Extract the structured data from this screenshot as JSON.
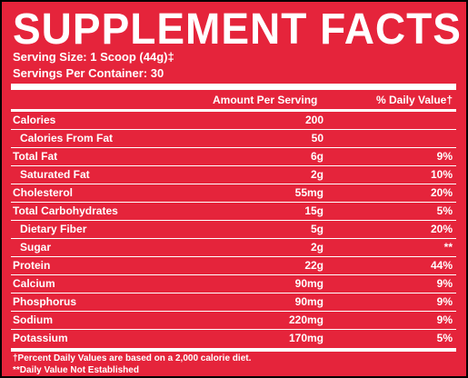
{
  "title": "SUPPLEMENT FACTS",
  "serving_size": "Serving Size: 1 Scoop (44g)‡",
  "servings_per_container": "Servings Per Container: 30",
  "columns": {
    "amount": "Amount Per Serving",
    "daily_value": "% Daily Value†"
  },
  "rows": [
    {
      "name": "Calories",
      "amount": "200",
      "dv": "",
      "indent": false
    },
    {
      "name": "Calories From Fat",
      "amount": "50",
      "dv": "",
      "indent": true
    },
    {
      "name": "Total Fat",
      "amount": "6g",
      "dv": "9%",
      "indent": false
    },
    {
      "name": "Saturated Fat",
      "amount": "2g",
      "dv": "10%",
      "indent": true
    },
    {
      "name": "Cholesterol",
      "amount": "55mg",
      "dv": "20%",
      "indent": false
    },
    {
      "name": "Total Carbohydrates",
      "amount": "15g",
      "dv": "5%",
      "indent": false
    },
    {
      "name": "Dietary Fiber",
      "amount": "5g",
      "dv": "20%",
      "indent": true
    },
    {
      "name": "Sugar",
      "amount": "2g",
      "dv": "**",
      "indent": true
    },
    {
      "name": "Protein",
      "amount": "22g",
      "dv": "44%",
      "indent": false
    },
    {
      "name": "Calcium",
      "amount": "90mg",
      "dv": "9%",
      "indent": false
    },
    {
      "name": "Phosphorus",
      "amount": "90mg",
      "dv": "9%",
      "indent": false
    },
    {
      "name": "Sodium",
      "amount": "220mg",
      "dv": "9%",
      "indent": false
    },
    {
      "name": "Potassium",
      "amount": "170mg",
      "dv": "5%",
      "indent": false
    }
  ],
  "footnotes": [
    "†Percent Daily Values are based on a 2,000 calorie diet.",
    "**Daily Value Not Established"
  ],
  "colors": {
    "background": "#e5243b",
    "text": "#ffffff",
    "border": "#000000"
  }
}
